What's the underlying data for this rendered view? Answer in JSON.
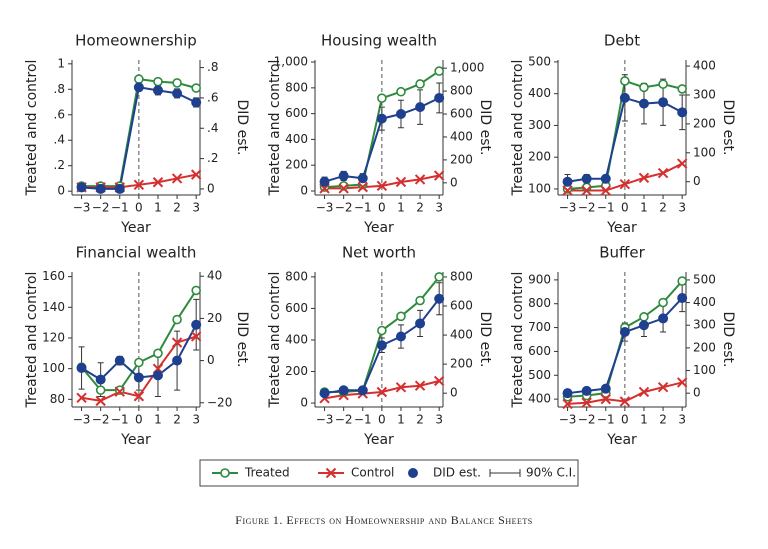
{
  "chart_data": [
    {
      "type": "line",
      "title": "Homeownership",
      "xlabel": "Year",
      "ylabel": "Treated and control",
      "y2label": "DID est.",
      "x": [
        -3,
        -2,
        -1,
        0,
        1,
        2,
        3
      ],
      "xlim": [
        -3.5,
        3.2
      ],
      "xticks": [
        {
          "value": -3,
          "label": "−3"
        },
        {
          "value": -2,
          "label": "−2"
        },
        {
          "value": -1,
          "label": "−1"
        },
        0,
        1,
        2,
        3
      ],
      "vline": 0,
      "ylim": [
        -0.03,
        1.03
      ],
      "yticks": [
        0,
        {
          "value": 0.2,
          "label": ".2"
        },
        {
          "value": 0.4,
          "label": ".4"
        },
        {
          "value": 0.6,
          "label": ".6"
        },
        {
          "value": 0.8,
          "label": ".8"
        },
        1
      ],
      "y2lim": [
        -0.04,
        0.85
      ],
      "y2ticks": [
        0,
        {
          "value": 0.2,
          "label": ".2"
        },
        {
          "value": 0.4,
          "label": ".4"
        },
        {
          "value": 0.6,
          "label": ".6"
        },
        {
          "value": 0.8,
          "label": ".8"
        }
      ],
      "series": [
        {
          "name": "Treated",
          "color": "#2e8b3e",
          "marker": "circle-open",
          "values": [
            0.04,
            0.04,
            0.04,
            0.88,
            0.86,
            0.85,
            0.81
          ]
        },
        {
          "name": "Control",
          "color": "#d62f2f",
          "marker": "x",
          "values": [
            0.03,
            0.03,
            0.03,
            0.05,
            0.07,
            0.1,
            0.13
          ]
        },
        {
          "name": "DID est.",
          "color": "#1f3f8f",
          "marker": "circle",
          "axis": "y2",
          "values": [
            0.01,
            0,
            0,
            0.67,
            0.65,
            0.63,
            0.57
          ],
          "errors": [
            0.01,
            0.01,
            0.01,
            0.02,
            0.03,
            0.03,
            0.03
          ]
        }
      ]
    },
    {
      "type": "line",
      "title": "Housing wealth",
      "xlabel": "Year",
      "ylabel": "Treated and control",
      "y2label": "DID est.",
      "x": [
        -3,
        -2,
        -1,
        0,
        1,
        2,
        3
      ],
      "xlim": [
        -3.5,
        3.2
      ],
      "xticks": [
        {
          "value": -3,
          "label": "−3"
        },
        {
          "value": -2,
          "label": "−2"
        },
        {
          "value": -1,
          "label": "−1"
        },
        0,
        1,
        2,
        3
      ],
      "vline": 0,
      "ylim": [
        -31,
        1016
      ],
      "yticks": [
        0,
        200,
        400,
        600,
        800,
        {
          "value": 1000,
          "label": "1,000"
        }
      ],
      "y2lim": [
        -106,
        1071
      ],
      "y2ticks": [
        0,
        200,
        400,
        600,
        800,
        {
          "value": 1000,
          "label": "1,000"
        }
      ],
      "series": [
        {
          "name": "Treated",
          "color": "#2e8b3e",
          "marker": "circle-open",
          "values": [
            30,
            40,
            50,
            720,
            770,
            830,
            930
          ]
        },
        {
          "name": "Control",
          "color": "#d62f2f",
          "marker": "x",
          "values": [
            20,
            20,
            30,
            40,
            70,
            90,
            120
          ]
        },
        {
          "name": "DID est.",
          "color": "#1f3f8f",
          "marker": "circle",
          "axis": "y2",
          "values": [
            10,
            60,
            40,
            560,
            600,
            660,
            740
          ],
          "errors": [
            40,
            40,
            40,
            100,
            120,
            150,
            130
          ]
        }
      ]
    },
    {
      "type": "line",
      "title": "Debt",
      "xlabel": "Year",
      "ylabel": "Treated and control",
      "y2label": "DID est.",
      "x": [
        -3,
        -2,
        -1,
        0,
        1,
        2,
        3
      ],
      "xlim": [
        -3.5,
        3.2
      ],
      "xticks": [
        {
          "value": -3,
          "label": "−3"
        },
        {
          "value": -2,
          "label": "−2"
        },
        {
          "value": -1,
          "label": "−1"
        },
        0,
        1,
        2,
        3
      ],
      "vline": 0,
      "ylim": [
        81,
        506
      ],
      "yticks": [
        100,
        200,
        300,
        400,
        500
      ],
      "y2lim": [
        -46,
        421
      ],
      "y2ticks": [
        0,
        100,
        200,
        300,
        400
      ],
      "series": [
        {
          "name": "Treated",
          "color": "#2e8b3e",
          "marker": "circle-open",
          "values": [
            100,
            105,
            110,
            440,
            420,
            430,
            415
          ]
        },
        {
          "name": "Control",
          "color": "#d62f2f",
          "marker": "x",
          "values": [
            95,
            95,
            95,
            115,
            135,
            150,
            180
          ]
        },
        {
          "name": "DID est.",
          "color": "#1f3f8f",
          "marker": "circle",
          "axis": "y2",
          "values": [
            0,
            10,
            10,
            290,
            270,
            275,
            240
          ],
          "errors": [
            25,
            15,
            10,
            80,
            70,
            80,
            60
          ]
        }
      ]
    },
    {
      "type": "line",
      "title": "Financial wealth",
      "xlabel": "Year",
      "ylabel": "Treated and control",
      "y2label": "DID est.",
      "x": [
        -3,
        -2,
        -1,
        0,
        1,
        2,
        3
      ],
      "xlim": [
        -3.5,
        3.2
      ],
      "xticks": [
        {
          "value": -3,
          "label": "−3"
        },
        {
          "value": -2,
          "label": "−2"
        },
        {
          "value": -1,
          "label": "−1"
        },
        0,
        1,
        2,
        3
      ],
      "vline": 0,
      "ylim": [
        75,
        163
      ],
      "yticks": [
        80,
        100,
        120,
        140,
        160
      ],
      "y2lim": [
        -22,
        42
      ],
      "y2ticks": [
        {
          "value": -20,
          "label": "−20"
        },
        0,
        20,
        40
      ],
      "series": [
        {
          "name": "Treated",
          "color": "#2e8b3e",
          "marker": "circle-open",
          "values": [
            101,
            86,
            86,
            104,
            110,
            132,
            151
          ]
        },
        {
          "name": "Control",
          "color": "#d62f2f",
          "marker": "x",
          "values": [
            81,
            79,
            85,
            82,
            100,
            117,
            121
          ]
        },
        {
          "name": "DID est.",
          "color": "#1f3f8f",
          "marker": "circle",
          "axis": "y2",
          "values": [
            -3.5,
            -9,
            0,
            -8,
            -7,
            0,
            17
          ],
          "errors": [
            10,
            8,
            2,
            6,
            10,
            14,
            12
          ]
        }
      ]
    },
    {
      "type": "line",
      "title": "Net worth",
      "xlabel": "Year",
      "ylabel": "Treated and control",
      "y2label": "DID est.",
      "x": [
        -3,
        -2,
        -1,
        0,
        1,
        2,
        3
      ],
      "xlim": [
        -3.5,
        3.2
      ],
      "xticks": [
        {
          "value": -3,
          "label": "−3"
        },
        {
          "value": -2,
          "label": "−2"
        },
        {
          "value": -1,
          "label": "−1"
        },
        0,
        1,
        2,
        3
      ],
      "vline": 0,
      "ylim": [
        -25,
        831
      ],
      "yticks": [
        0,
        200,
        400,
        600,
        800
      ],
      "y2lim": [
        -95,
        834
      ],
      "y2ticks": [
        0,
        200,
        400,
        600,
        800
      ],
      "series": [
        {
          "name": "Treated",
          "color": "#2e8b3e",
          "marker": "circle-open",
          "values": [
            70,
            70,
            80,
            460,
            550,
            650,
            800
          ]
        },
        {
          "name": "Control",
          "color": "#d62f2f",
          "marker": "x",
          "values": [
            30,
            50,
            60,
            70,
            100,
            110,
            140
          ]
        },
        {
          "name": "DID est.",
          "color": "#1f3f8f",
          "marker": "circle",
          "axis": "y2",
          "values": [
            0,
            20,
            20,
            330,
            390,
            480,
            650
          ],
          "errors": [
            20,
            20,
            20,
            50,
            80,
            90,
            110
          ]
        }
      ]
    },
    {
      "type": "line",
      "title": "Buffer",
      "xlabel": "Year",
      "ylabel": "Treated and control",
      "y2label": "DID est.",
      "x": [
        -3,
        -2,
        -1,
        0,
        1,
        2,
        3
      ],
      "xlim": [
        -3.5,
        3.2
      ],
      "xticks": [
        {
          "value": -3,
          "label": "−3"
        },
        {
          "value": -2,
          "label": "−2"
        },
        {
          "value": -1,
          "label": "−1"
        },
        0,
        1,
        2,
        3
      ],
      "vline": 0,
      "ylim": [
        367,
        933
      ],
      "yticks": [
        400,
        500,
        600,
        700,
        800,
        900
      ],
      "y2lim": [
        -61,
        535
      ],
      "y2ticks": [
        0,
        100,
        200,
        300,
        400,
        500
      ],
      "series": [
        {
          "name": "Treated",
          "color": "#2e8b3e",
          "marker": "circle-open",
          "values": [
            410,
            415,
            425,
            700,
            745,
            805,
            895
          ]
        },
        {
          "name": "Control",
          "color": "#d62f2f",
          "marker": "x",
          "values": [
            380,
            385,
            400,
            390,
            430,
            450,
            470
          ]
        },
        {
          "name": "DID est.",
          "color": "#1f3f8f",
          "marker": "circle",
          "axis": "y2",
          "values": [
            0,
            10,
            20,
            270,
            300,
            330,
            420
          ],
          "errors": [
            15,
            15,
            15,
            40,
            50,
            60,
            60
          ]
        }
      ]
    }
  ],
  "figure": {
    "ci_label": "90% C.I.",
    "caption": "Figure 1. Effects on Homeownership and Balance Sheets"
  }
}
